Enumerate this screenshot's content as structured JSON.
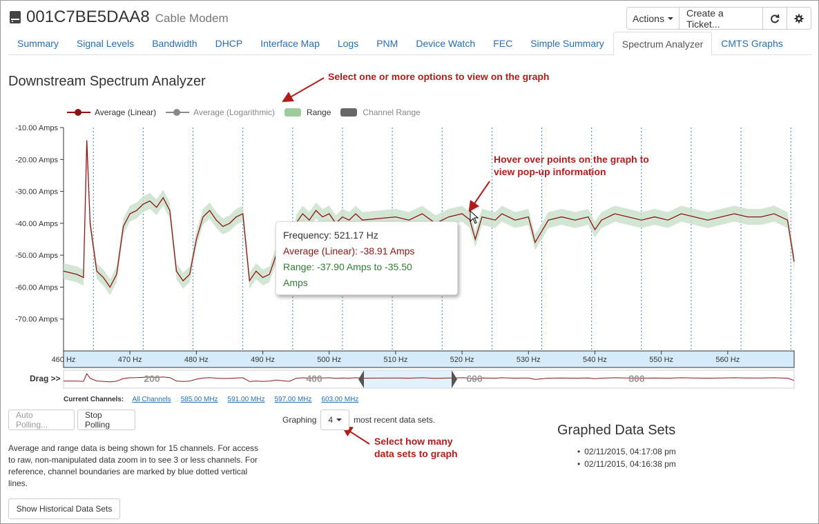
{
  "header": {
    "device_id": "001C7BE5DAA8",
    "device_type": "Cable Modem",
    "actions_label": "Actions",
    "create_ticket_label": "Create a Ticket..."
  },
  "tabs": [
    {
      "label": "Summary"
    },
    {
      "label": "Signal Levels"
    },
    {
      "label": "Bandwidth"
    },
    {
      "label": "DHCP"
    },
    {
      "label": "Interface Map"
    },
    {
      "label": "Logs"
    },
    {
      "label": "PNM"
    },
    {
      "label": "Device Watch"
    },
    {
      "label": "FEC"
    },
    {
      "label": "Simple Summary"
    },
    {
      "label": "Spectrum Analyzer",
      "active": true
    },
    {
      "label": "CMTS Graphs"
    }
  ],
  "page": {
    "title": "Downstream Spectrum Analyzer"
  },
  "annotations": {
    "options": "Select one or more options to view on the graph",
    "hover_line1": "Hover over points on the graph to",
    "hover_line2": "view pop-up information",
    "datasets_line1": "Select how many",
    "datasets_line2": "data sets to graph"
  },
  "legend": [
    {
      "label": "Average (Linear)",
      "color": "#8b1414",
      "kind": "line"
    },
    {
      "label": "Average (Logarithmic)",
      "color": "#888888",
      "kind": "line"
    },
    {
      "label": "Range",
      "color": "#9ccc9c",
      "kind": "box"
    },
    {
      "label": "Channel Range",
      "color": "#666666",
      "kind": "box"
    }
  ],
  "chart_data": {
    "type": "line",
    "xlabel": "",
    "ylabel": "",
    "x_ticks": [
      "460 Hz",
      "470 Hz",
      "480 Hz",
      "490 Hz",
      "500 Hz",
      "510 Hz",
      "520 Hz",
      "530 Hz",
      "540 Hz",
      "550 Hz",
      "560 Hz"
    ],
    "y_ticks": [
      "-10.00 Amps",
      "-20.00 Amps",
      "-30.00 Amps",
      "-40.00 Amps",
      "-50.00 Amps",
      "-60.00 Amps",
      "-70.00 Amps"
    ],
    "xlim": [
      460,
      570
    ],
    "ylim": [
      -80,
      -10
    ],
    "channel_boundaries": [
      464.5,
      472,
      479.5,
      487,
      494.5,
      502,
      509.5,
      517,
      524.5,
      532,
      539.5,
      547,
      554.5,
      562,
      569.5
    ],
    "series": [
      {
        "name": "Average (Linear)",
        "color": "#8b1414",
        "points": [
          [
            460,
            -55
          ],
          [
            462,
            -56
          ],
          [
            463,
            -57
          ],
          [
            464,
            -40
          ],
          [
            463.5,
            -14
          ],
          [
            465,
            -55
          ],
          [
            466,
            -57
          ],
          [
            467,
            -60
          ],
          [
            468,
            -56
          ],
          [
            469,
            -41
          ],
          [
            470,
            -37
          ],
          [
            471,
            -36
          ],
          [
            472,
            -34
          ],
          [
            473,
            -33
          ],
          [
            474,
            -35
          ],
          [
            475,
            -32
          ],
          [
            476,
            -36
          ],
          [
            477,
            -55
          ],
          [
            478,
            -58
          ],
          [
            479,
            -56
          ],
          [
            480,
            -45
          ],
          [
            481,
            -38
          ],
          [
            482,
            -36
          ],
          [
            483,
            -39
          ],
          [
            484,
            -41
          ],
          [
            485,
            -40
          ],
          [
            486,
            -38
          ],
          [
            487,
            -37
          ],
          [
            488,
            -58
          ],
          [
            489,
            -55
          ],
          [
            490,
            -57
          ],
          [
            491,
            -56
          ],
          [
            492,
            -50
          ],
          [
            493,
            -54
          ],
          [
            494,
            -57
          ],
          [
            495,
            -40
          ],
          [
            496,
            -37
          ],
          [
            497,
            -39
          ],
          [
            498,
            -36
          ],
          [
            499,
            -38
          ],
          [
            500,
            -37
          ],
          [
            501,
            -40
          ],
          [
            502,
            -38
          ],
          [
            503,
            -39
          ],
          [
            504,
            -37
          ],
          [
            505,
            -39
          ],
          [
            510,
            -38
          ],
          [
            512,
            -39
          ],
          [
            514,
            -37
          ],
          [
            516,
            -40
          ],
          [
            518,
            -38
          ],
          [
            520,
            -37
          ],
          [
            521.17,
            -38.91
          ],
          [
            522,
            -45
          ],
          [
            523,
            -38
          ],
          [
            525,
            -39
          ],
          [
            526,
            -37
          ],
          [
            528,
            -39
          ],
          [
            530,
            -38
          ],
          [
            531,
            -46
          ],
          [
            533,
            -39
          ],
          [
            535,
            -38
          ],
          [
            537,
            -39
          ],
          [
            539,
            -38
          ],
          [
            540,
            -42
          ],
          [
            541,
            -39
          ],
          [
            543,
            -37
          ],
          [
            545,
            -38
          ],
          [
            547,
            -39
          ],
          [
            549,
            -38
          ],
          [
            551,
            -39
          ],
          [
            553,
            -37
          ],
          [
            555,
            -38
          ],
          [
            557,
            -39
          ],
          [
            559,
            -38
          ],
          [
            561,
            -37
          ],
          [
            563,
            -38
          ],
          [
            565,
            -38
          ],
          [
            567,
            -37
          ],
          [
            569,
            -39
          ],
          [
            570,
            -52
          ]
        ]
      }
    ],
    "tooltip": {
      "frequency": "Frequency: 521.17 Hz",
      "average": "Average (Linear): -38.91 Amps",
      "range_line1": "Range: -37.90 Amps to -35.50",
      "range_line2": "Amps"
    },
    "navigator_ticks": [
      "200",
      "400",
      "600",
      "800"
    ]
  },
  "drag_label": "Drag >>",
  "channels": {
    "label": "Current Channels:",
    "links": [
      "All Channels",
      "585.00 MHz",
      "591.00 MHz",
      "597.00 MHz",
      "603.00 MHz"
    ]
  },
  "controls": {
    "auto_polling": "Auto Polling...",
    "stop_polling": "Stop Polling",
    "graphing_prefix": "Graphing",
    "graphing_value": "4",
    "graphing_suffix": "most recent data sets.",
    "show_historical": "Show Historical Data Sets"
  },
  "info_text": "Average and range data is being shown for 15 channels. For access to raw, non-manipulated data zoom in to see 3 or less channels. For reference, channel boundaries are marked by blue dotted vertical lines.",
  "graphed_data_sets": {
    "title": "Graphed Data Sets",
    "items": [
      "02/11/2015, 04:17:08 pm",
      "02/11/2015, 04:16:38 pm"
    ]
  }
}
